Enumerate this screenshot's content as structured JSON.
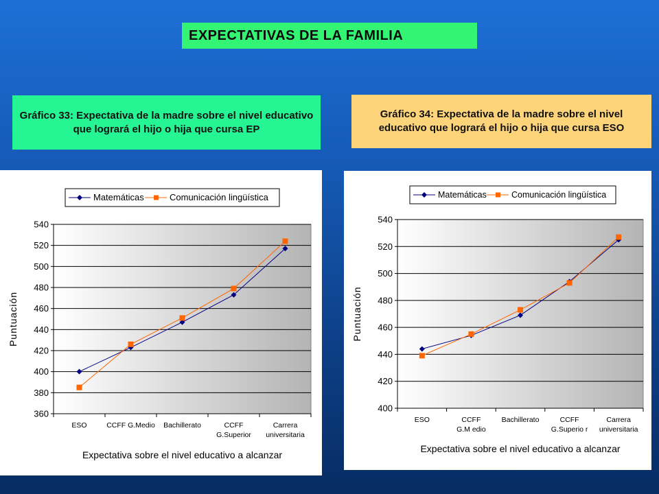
{
  "header": {
    "title": "EXPECTATIVAS DE LA FAMILIA"
  },
  "captions": {
    "left": "Gráfico 33: Expectativa de la madre sobre el nivel educativo que logrará el hijo o hija que cursa EP",
    "right": "Gráfico 34: Expectativa de la madre sobre el nivel educativo que logrará el hijo o hija que cursa ESO"
  },
  "colors": {
    "matematicas": "#000080",
    "comunicacion": "#ff6600"
  },
  "chart_data": [
    {
      "type": "line",
      "categories": [
        [
          "ESO"
        ],
        [
          "CCFF G.Medio"
        ],
        [
          "Bachillerato"
        ],
        [
          "CCFF",
          "G.Superior"
        ],
        [
          "Carrera",
          "universitaria"
        ]
      ],
      "series": [
        {
          "name": "Matemáticas",
          "values": [
            400,
            423,
            447,
            473,
            517
          ]
        },
        {
          "name": "Comunicación lingüística",
          "values": [
            385,
            426,
            451,
            479,
            524
          ]
        }
      ],
      "xlabel": "Expectativa sobre el nivel educativo a alcanzar",
      "ylabel": "Puntuación",
      "ylim": [
        360,
        540
      ],
      "yticks": [
        540,
        520,
        500,
        480,
        460,
        440,
        420,
        400,
        380,
        360
      ],
      "grid": true,
      "legend": "top"
    },
    {
      "type": "line",
      "categories": [
        [
          "ESO"
        ],
        [
          "CCFF",
          "G.M edio"
        ],
        [
          "Bachillerato"
        ],
        [
          "CCFF",
          "G.Superio r"
        ],
        [
          "Carrera",
          "universitaria"
        ]
      ],
      "series": [
        {
          "name": "Matemáticas",
          "values": [
            444,
            454,
            469,
            494,
            525
          ]
        },
        {
          "name": "Comunicación lingüística",
          "values": [
            439,
            455,
            473,
            493,
            527
          ]
        }
      ],
      "xlabel": "Expectativa sobre el nivel educativo a alcanzar",
      "ylabel": "Puntuación",
      "ylim": [
        400,
        540
      ],
      "yticks": [
        540,
        520,
        500,
        480,
        460,
        440,
        420,
        400
      ],
      "grid": true,
      "legend": "top"
    }
  ]
}
